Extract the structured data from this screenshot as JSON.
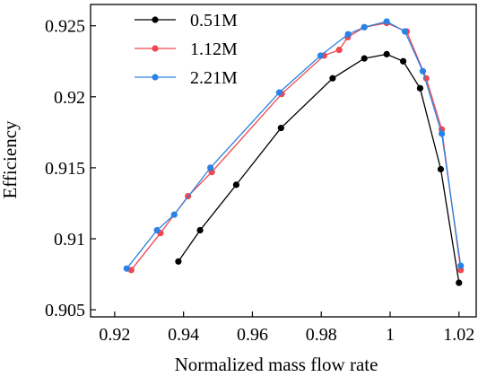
{
  "chart_data": {
    "type": "line",
    "title": "",
    "xlabel": "Normalized mass flow rate",
    "ylabel": "Efficiency",
    "xlim": [
      0.913,
      1.025
    ],
    "ylim": [
      0.9045,
      0.9265
    ],
    "xticks": [
      0.92,
      0.94,
      0.96,
      0.98,
      1.0,
      1.02
    ],
    "xtick_labels": [
      "0.92",
      "0.94",
      "0.96",
      "0.98",
      "1",
      "1.02"
    ],
    "yticks": [
      0.905,
      0.91,
      0.915,
      0.92,
      0.925
    ],
    "ytick_labels": [
      "0.905",
      "0.91",
      "0.915",
      "0.92",
      "0.925"
    ],
    "grid": false,
    "legend_position": "top-left",
    "series": [
      {
        "name": "0.51M",
        "color": "#000000",
        "x": [
          0.9385,
          0.9448,
          0.9553,
          0.9683,
          0.9833,
          0.9925,
          0.999,
          1.0038,
          1.0087,
          1.0147,
          1.02
        ],
        "y": [
          0.9084,
          0.9106,
          0.9138,
          0.9178,
          0.9213,
          0.9227,
          0.923,
          0.9225,
          0.9206,
          0.9149,
          0.9069
        ]
      },
      {
        "name": "1.12M",
        "color": "#f0484e",
        "x": [
          0.9248,
          0.9333,
          0.9413,
          0.9482,
          0.9685,
          0.9808,
          0.9852,
          0.9877,
          0.9925,
          0.999,
          1.0048,
          1.0105,
          1.015,
          1.0205
        ],
        "y": [
          0.9078,
          0.9104,
          0.913,
          0.9147,
          0.9202,
          0.9229,
          0.9233,
          0.9242,
          0.9249,
          0.9252,
          0.9246,
          0.9213,
          0.9177,
          0.9078
        ]
      },
      {
        "name": "2.21M",
        "color": "#2a82e4",
        "x": [
          0.9235,
          0.9323,
          0.9373,
          0.9478,
          0.9678,
          0.9798,
          0.9878,
          0.9925,
          0.999,
          1.0043,
          1.0095,
          1.015,
          1.0205
        ],
        "y": [
          0.9079,
          0.9106,
          0.9117,
          0.915,
          0.9203,
          0.9229,
          0.9244,
          0.9249,
          0.9253,
          0.9246,
          0.9218,
          0.9174,
          0.9081
        ]
      }
    ]
  }
}
